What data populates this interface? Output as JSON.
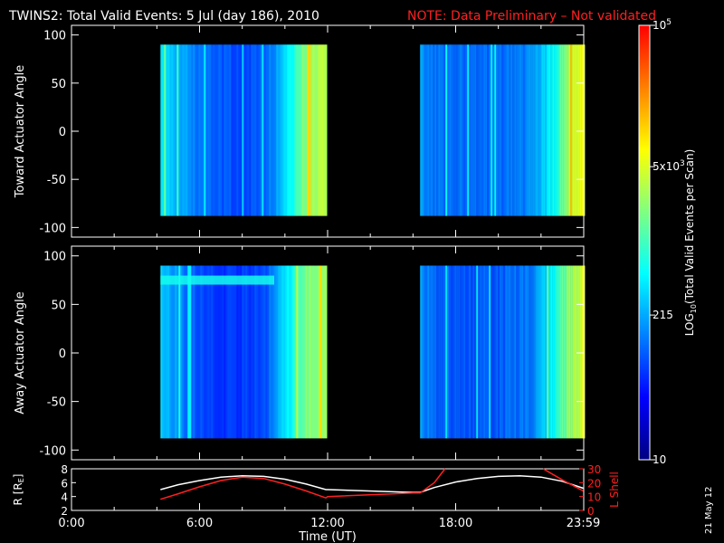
{
  "header": {
    "title": "TWINS2: Total Valid Events:  5 Jul (day 186), 2010",
    "note": "NOTE: Data Preliminary – Not validated",
    "note_color": "#ff2020"
  },
  "colors": {
    "background": "#000000",
    "axes": "#ffffff",
    "r_line": "#ffffff",
    "l_line": "#ff2020"
  },
  "colorbar": {
    "label_main": "LOG",
    "label_sub": "10",
    "label_rest": "(Total Valid Events per Scan)",
    "scale": "log",
    "range": [
      10,
      100000
    ],
    "ticks": [
      {
        "value": 10,
        "base": "10",
        "exp": ""
      },
      {
        "value": 215,
        "base": "215",
        "exp": ""
      },
      {
        "value": 5000,
        "base": "5x10",
        "exp": "3"
      },
      {
        "value": 100000,
        "base": "10",
        "exp": "5"
      }
    ],
    "colormap": [
      "#000080",
      "#0000ff",
      "#0080ff",
      "#00ffff",
      "#80ff80",
      "#ffff00",
      "#ff8000",
      "#ff0000"
    ]
  },
  "chart_data": [
    {
      "type": "heatmap",
      "panel": "toward",
      "ylabel": "Toward Actuator Angle",
      "ylim": [
        -110,
        110
      ],
      "yticks": [
        100,
        50,
        0,
        -50,
        -100
      ],
      "xlim_hours": [
        0,
        24
      ],
      "data_extent_angle": [
        -88,
        90
      ],
      "data_intervals_ut": [
        [
          "04:10",
          "11:55"
        ],
        [
          "16:20",
          "23:59"
        ]
      ],
      "log_events_profile": [
        {
          "t": 4.17,
          "v": 2.65
        },
        {
          "t": 4.6,
          "v": 2.5
        },
        {
          "t": 5.2,
          "v": 2.3
        },
        {
          "t": 6.0,
          "v": 2.05
        },
        {
          "t": 7.0,
          "v": 1.95
        },
        {
          "t": 8.0,
          "v": 1.9
        },
        {
          "t": 9.0,
          "v": 2.0
        },
        {
          "t": 9.4,
          "v": 2.2
        },
        {
          "t": 10.2,
          "v": 2.7
        },
        {
          "t": 11.0,
          "v": 3.4
        },
        {
          "t": 11.92,
          "v": 3.55
        },
        {
          "t": 16.33,
          "v": 2.3
        },
        {
          "t": 17.0,
          "v": 2.1
        },
        {
          "t": 18.5,
          "v": 2.05
        },
        {
          "t": 20.0,
          "v": 2.05
        },
        {
          "t": 21.5,
          "v": 2.2
        },
        {
          "t": 22.5,
          "v": 2.7
        },
        {
          "t": 23.3,
          "v": 3.5
        },
        {
          "t": 23.98,
          "v": 3.8
        }
      ]
    },
    {
      "type": "heatmap",
      "panel": "away",
      "ylabel": "Away Actuator Angle",
      "ylim": [
        -110,
        110
      ],
      "yticks": [
        100,
        50,
        0,
        -50,
        -100
      ],
      "xlim_hours": [
        0,
        24
      ],
      "data_extent_angle": [
        -88,
        90
      ],
      "data_intervals_ut": [
        [
          "04:10",
          "11:55"
        ],
        [
          "16:20",
          "23:59"
        ]
      ],
      "feature": {
        "angle": 75,
        "log_events": 2.8,
        "from_hour": 4.17,
        "to_hour": 9.5
      },
      "log_events_profile": [
        {
          "t": 4.17,
          "v": 2.5
        },
        {
          "t": 5.0,
          "v": 2.2
        },
        {
          "t": 6.0,
          "v": 1.9
        },
        {
          "t": 7.5,
          "v": 1.8
        },
        {
          "t": 9.0,
          "v": 1.9
        },
        {
          "t": 9.4,
          "v": 2.2
        },
        {
          "t": 10.2,
          "v": 2.7
        },
        {
          "t": 11.0,
          "v": 3.3
        },
        {
          "t": 11.92,
          "v": 3.45
        },
        {
          "t": 16.33,
          "v": 2.25
        },
        {
          "t": 17.0,
          "v": 2.0
        },
        {
          "t": 18.5,
          "v": 1.95
        },
        {
          "t": 20.0,
          "v": 2.0
        },
        {
          "t": 21.5,
          "v": 2.15
        },
        {
          "t": 22.5,
          "v": 2.7
        },
        {
          "t": 23.3,
          "v": 3.4
        },
        {
          "t": 23.98,
          "v": 3.7
        }
      ]
    },
    {
      "type": "line",
      "panel": "orbit",
      "ylabel": "R [R",
      "ylabel_sub": "E",
      "ylabel_end": "]",
      "ylim": [
        2,
        8
      ],
      "yticks": [
        2,
        4,
        6,
        8
      ],
      "y2label": "L Shell",
      "y2lim": [
        0,
        30
      ],
      "y2ticks": [
        0,
        10,
        20,
        30
      ],
      "xlabel": "Time (UT)",
      "xticks": [
        "0:00",
        "6:00",
        "12:00",
        "18:00",
        "23:59"
      ],
      "xtick_hours": [
        0,
        6,
        12,
        18,
        23.98
      ],
      "xlim_hours": [
        0,
        24
      ],
      "series": [
        {
          "axis": "left",
          "values": [
            {
              "t": 4.17,
              "v": 5.0
            },
            {
              "t": 5.0,
              "v": 5.7
            },
            {
              "t": 6.0,
              "v": 6.3
            },
            {
              "t": 7.0,
              "v": 6.8
            },
            {
              "t": 8.0,
              "v": 7.0
            },
            {
              "t": 9.0,
              "v": 6.9
            },
            {
              "t": 10.0,
              "v": 6.5
            },
            {
              "t": 11.0,
              "v": 5.8
            },
            {
              "t": 11.92,
              "v": 5.0
            },
            {
              "t": 12.0,
              "v": 5.0
            },
            {
              "t": 16.0,
              "v": 4.6
            },
            {
              "t": 16.33,
              "v": 4.6
            },
            {
              "t": 17.0,
              "v": 5.3
            },
            {
              "t": 18.0,
              "v": 6.1
            },
            {
              "t": 19.0,
              "v": 6.6
            },
            {
              "t": 20.0,
              "v": 6.9
            },
            {
              "t": 21.0,
              "v": 7.0
            },
            {
              "t": 22.0,
              "v": 6.8
            },
            {
              "t": 23.0,
              "v": 6.2
            },
            {
              "t": 23.98,
              "v": 5.2
            }
          ]
        },
        {
          "axis": "right",
          "values": [
            {
              "t": 4.17,
              "v": 8.0
            },
            {
              "t": 5.0,
              "v": 12.0
            },
            {
              "t": 6.0,
              "v": 17.0
            },
            {
              "t": 7.0,
              "v": 21.5
            },
            {
              "t": 8.0,
              "v": 24.0
            },
            {
              "t": 9.0,
              "v": 23.0
            },
            {
              "t": 10.0,
              "v": 19.0
            },
            {
              "t": 11.0,
              "v": 14.0
            },
            {
              "t": 11.92,
              "v": 9.0
            },
            {
              "t": 12.0,
              "v": 10.0
            },
            {
              "t": 16.0,
              "v": 12.5
            },
            {
              "t": 16.33,
              "v": 12.5
            },
            {
              "t": 17.0,
              "v": 20.0
            },
            {
              "t": 17.5,
              "v": 30.0
            }
          ]
        },
        {
          "axis": "right",
          "values": [
            {
              "t": 22.1,
              "v": 30.0
            },
            {
              "t": 23.0,
              "v": 22.0
            },
            {
              "t": 23.98,
              "v": 14.0
            }
          ]
        }
      ]
    }
  ],
  "footer": {
    "date_stamp": "21 May 12"
  }
}
